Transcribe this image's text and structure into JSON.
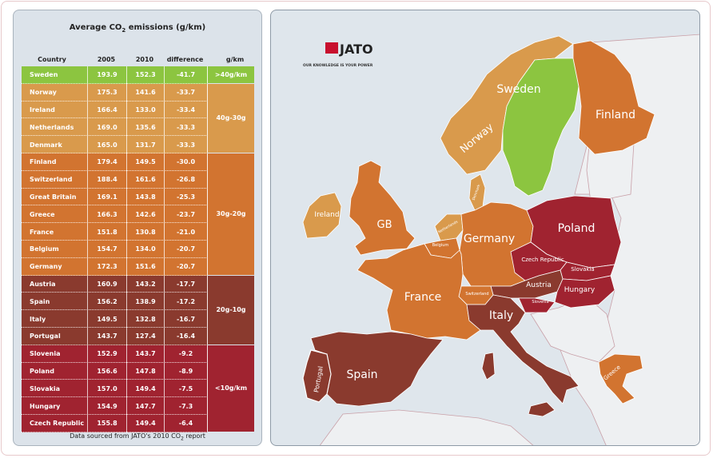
{
  "table": {
    "title_prefix": "Average CO",
    "title_sub": "2",
    "title_suffix": " emissions (g/km)",
    "headers": {
      "country": "Country",
      "y2005": "2005",
      "y2010": "2010",
      "difference": "difference",
      "gkm": "g/km"
    },
    "rows": [
      {
        "country": "Sweden",
        "v2005": "193.9",
        "v2010": "152.3",
        "diff": "-41.7",
        "band": 0
      },
      {
        "country": "Norway",
        "v2005": "175.3",
        "v2010": "141.6",
        "diff": "-33.7",
        "band": 1
      },
      {
        "country": "Ireland",
        "v2005": "166.4",
        "v2010": "133.0",
        "diff": "-33.4",
        "band": 1
      },
      {
        "country": "Netherlands",
        "v2005": "169.0",
        "v2010": "135.6",
        "diff": "-33.3",
        "band": 1
      },
      {
        "country": "Denmark",
        "v2005": "165.0",
        "v2010": "131.7",
        "diff": "-33.3",
        "band": 1
      },
      {
        "country": "Finland",
        "v2005": "179.4",
        "v2010": "149.5",
        "diff": "-30.0",
        "band": 2
      },
      {
        "country": "Switzerland",
        "v2005": "188.4",
        "v2010": "161.6",
        "diff": "-26.8",
        "band": 2
      },
      {
        "country": "Great Britain",
        "v2005": "169.1",
        "v2010": "143.8",
        "diff": "-25.3",
        "band": 2
      },
      {
        "country": "Greece",
        "v2005": "166.3",
        "v2010": "142.6",
        "diff": "-23.7",
        "band": 2
      },
      {
        "country": "France",
        "v2005": "151.8",
        "v2010": "130.8",
        "diff": "-21.0",
        "band": 2
      },
      {
        "country": "Belgium",
        "v2005": "154.7",
        "v2010": "134.0",
        "diff": "-20.7",
        "band": 2
      },
      {
        "country": "Germany",
        "v2005": "172.3",
        "v2010": "151.6",
        "diff": "-20.7",
        "band": 2
      },
      {
        "country": "Austria",
        "v2005": "160.9",
        "v2010": "143.2",
        "diff": "-17.7",
        "band": 3
      },
      {
        "country": "Spain",
        "v2005": "156.2",
        "v2010": "138.9",
        "diff": "-17.2",
        "band": 3
      },
      {
        "country": "Italy",
        "v2005": "149.5",
        "v2010": "132.8",
        "diff": "-16.7",
        "band": 3
      },
      {
        "country": "Portugal",
        "v2005": "143.7",
        "v2010": "127.4",
        "diff": "-16.4",
        "band": 3
      },
      {
        "country": "Slovenia",
        "v2005": "152.9",
        "v2010": "143.7",
        "diff": "-9.2",
        "band": 4
      },
      {
        "country": "Poland",
        "v2005": "156.6",
        "v2010": "147.8",
        "diff": "-8.9",
        "band": 4
      },
      {
        "country": "Slovakia",
        "v2005": "157.0",
        "v2010": "149.4",
        "diff": "-7.5",
        "band": 4
      },
      {
        "country": "Hungary",
        "v2005": "154.9",
        "v2010": "147.7",
        "diff": "-7.3",
        "band": 4
      },
      {
        "country": "Czech Republic",
        "v2005": "155.8",
        "v2010": "149.4",
        "diff": "-6.4",
        "band": 4
      }
    ],
    "bands": [
      {
        "label": ">40g/km",
        "color": "#8cc540",
        "start": 0,
        "count": 1
      },
      {
        "label": "40g-30g",
        "color": "#d99a4c",
        "start": 1,
        "count": 4
      },
      {
        "label": "30g-20g",
        "color": "#d27430",
        "start": 5,
        "count": 7
      },
      {
        "label": "20g-10g",
        "color": "#8a3a2e",
        "start": 12,
        "count": 4
      },
      {
        "label": "<10g/km",
        "color": "#a02330",
        "start": 16,
        "count": 5
      }
    ],
    "footer_prefix": "Data sourced from JATO's 2010 CO",
    "footer_sub": "2",
    "footer_suffix": " report"
  },
  "map": {
    "logo_text": "JATO",
    "logo_tagline": "OUR KNOWLEDGE IS YOUR POWER",
    "colors": {
      "sea": "#dfe6ec",
      "other_land": "#eef0f2",
      "border": "#9a2a3a"
    },
    "labels": {
      "sweden": "Sweden",
      "finland": "Finland",
      "norway": "Norway",
      "ireland": "Ireland",
      "gb": "GB",
      "germany": "Germany",
      "poland": "Poland",
      "czech": "Czech Republic",
      "slovakia": "Slovakia",
      "austria": "Austria",
      "hungary": "Hungary",
      "slovenia": "Slovenia",
      "switzerland": "Switzerland",
      "belgium": "Belgium",
      "netherlands": "Netherlands",
      "denmark": "Denmark",
      "france": "France",
      "italy": "Italy",
      "spain": "Spain",
      "portugal": "Portugal",
      "greece": "Greece"
    }
  }
}
